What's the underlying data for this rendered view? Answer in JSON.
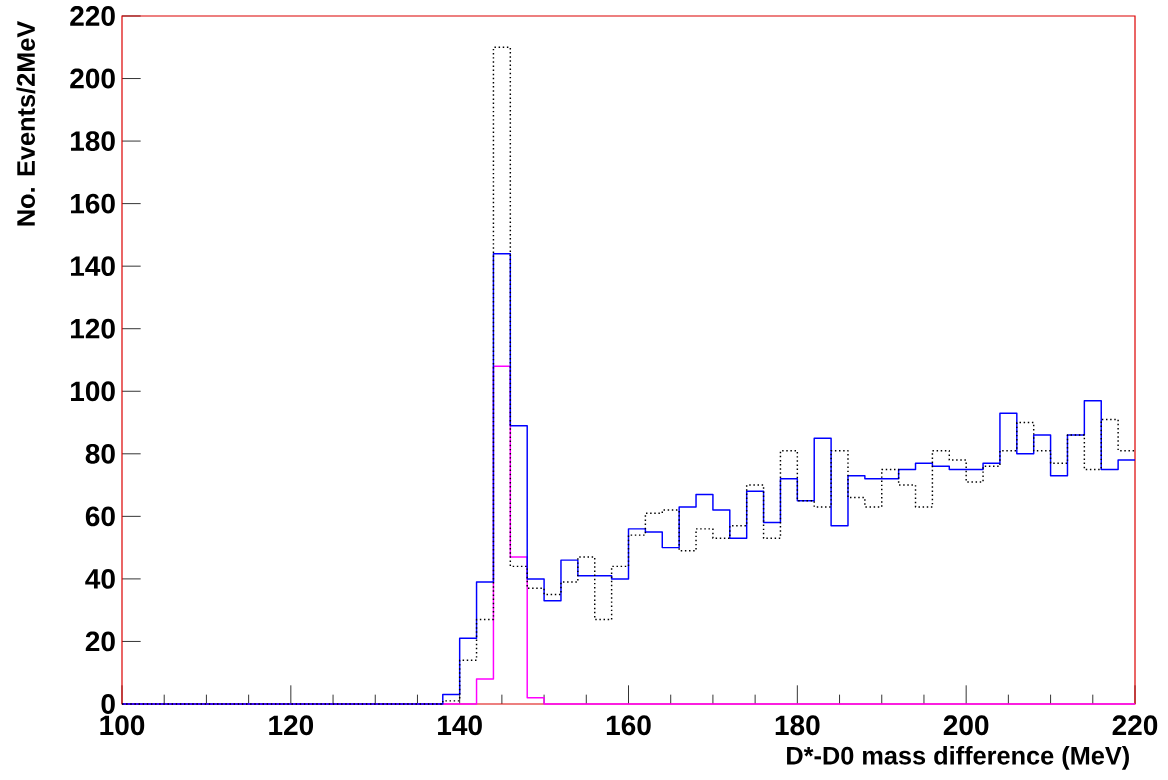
{
  "chart_data": {
    "type": "histogram",
    "xlabel": "D*-D0 mass difference (MeV)",
    "ylabel": "No. Events/2MeV",
    "bins": [
      100,
      102,
      104,
      106,
      108,
      110,
      112,
      114,
      116,
      118,
      120,
      122,
      124,
      126,
      128,
      130,
      132,
      134,
      136,
      138,
      140,
      142,
      144,
      146,
      148,
      150,
      152,
      154,
      156,
      158,
      160,
      162,
      164,
      166,
      168,
      170,
      172,
      174,
      176,
      178,
      180,
      182,
      184,
      186,
      188,
      190,
      192,
      194,
      196,
      198,
      200,
      202,
      204,
      206,
      208,
      210,
      212,
      214,
      216,
      218,
      220
    ],
    "series": [
      {
        "color": "#000000",
        "line_style": "dotted",
        "values": [
          0,
          0,
          0,
          0,
          0,
          0,
          0,
          0,
          0,
          0,
          0,
          0,
          0,
          0,
          0,
          0,
          0,
          0,
          0,
          1,
          14,
          27,
          210,
          44,
          37,
          35,
          39,
          47,
          27,
          44,
          54,
          61,
          62,
          49,
          56,
          53,
          57,
          70,
          53,
          81,
          65,
          63,
          81,
          66,
          63,
          75,
          70,
          63,
          81,
          78,
          71,
          76,
          81,
          90,
          81,
          77,
          86,
          75,
          91,
          81
        ]
      },
      {
        "color": "#0000ff",
        "line_style": "solid",
        "values": [
          0,
          0,
          0,
          0,
          0,
          0,
          0,
          0,
          0,
          0,
          0,
          0,
          0,
          0,
          0,
          0,
          0,
          0,
          0,
          3,
          21,
          39,
          144,
          89,
          40,
          33,
          46,
          41,
          41,
          40,
          56,
          55,
          50,
          63,
          67,
          62,
          53,
          68,
          58,
          72,
          65,
          85,
          57,
          73,
          72,
          72,
          75,
          77,
          76,
          75,
          75,
          77,
          93,
          80,
          86,
          73,
          86,
          97,
          75,
          78
        ]
      },
      {
        "color": "#ff00ff",
        "line_style": "solid",
        "values": [
          0,
          0,
          0,
          0,
          0,
          0,
          0,
          0,
          0,
          0,
          0,
          0,
          0,
          0,
          0,
          0,
          0,
          0,
          0,
          0,
          0,
          8,
          108,
          47,
          2,
          0,
          0,
          0,
          0,
          0,
          0,
          0,
          0,
          0,
          0,
          0,
          0,
          0,
          0,
          0,
          0,
          0,
          0,
          0,
          0,
          0,
          0,
          0,
          0,
          0,
          0,
          0,
          0,
          0,
          0,
          0,
          0,
          0,
          0,
          0
        ]
      }
    ],
    "xlim": [
      100,
      220
    ],
    "ylim": [
      0,
      220
    ],
    "xticks": [
      100,
      120,
      140,
      160,
      180,
      200,
      220
    ],
    "yticks": [
      0,
      20,
      40,
      60,
      80,
      100,
      120,
      140,
      160,
      180,
      200,
      220
    ],
    "grid": false
  }
}
